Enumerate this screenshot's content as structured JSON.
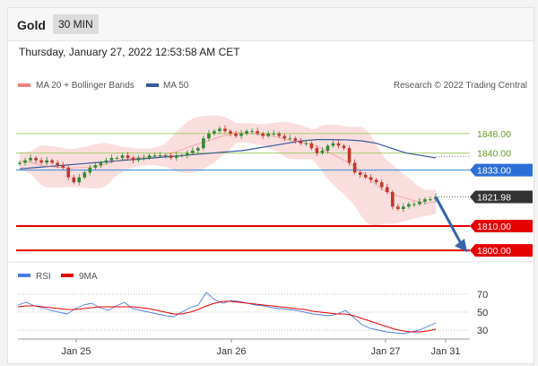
{
  "header": {
    "title": "Gold",
    "timeframe": "30 MIN"
  },
  "timestamp": "Thursday, January 27, 2022 12:53:58 AM CET",
  "legend": {
    "ma20": "MA 20 + Bollinger Bands",
    "ma50": "MA 50",
    "credit": "Research © 2022 Trading Central"
  },
  "rsi_legend": {
    "rsi": "RSI",
    "ma9": "9MA"
  },
  "colors": {
    "up": "#2e8b2e",
    "down": "#c0392b",
    "boll": "#f6c3c3",
    "ma50": "#34589a",
    "support": "#e60000",
    "resistance": "#4a90d9",
    "green_line": "#a3cc6a",
    "last": "#333333"
  },
  "chart_data": {
    "type": "line",
    "title": "Gold",
    "xlabel": "",
    "ylabel": "",
    "x_ticks": [
      "Jan 25",
      "Jan 26",
      "Jan 27",
      "Jan 31"
    ],
    "ylim": [
      1796,
      1866
    ],
    "price_series": {
      "name": "Gold price",
      "values": [
        1836,
        1837,
        1838,
        1837,
        1836,
        1837,
        1836,
        1835,
        1834,
        1830,
        1828,
        1830,
        1832,
        1834,
        1835,
        1836,
        1837,
        1838,
        1838,
        1839,
        1838,
        1837,
        1838,
        1838,
        1839,
        1839,
        1839,
        1839,
        1838,
        1839,
        1839,
        1840,
        1841,
        1842,
        1846,
        1848,
        1849,
        1850,
        1849,
        1848,
        1847,
        1848,
        1849,
        1849,
        1848,
        1847,
        1848,
        1848,
        1847,
        1846,
        1846,
        1845,
        1844,
        1844,
        1842,
        1840,
        1841,
        1843,
        1844,
        1843,
        1842,
        1836,
        1832,
        1831,
        1830,
        1829,
        1828,
        1826,
        1824,
        1818,
        1817,
        1818,
        1819,
        1819,
        1820,
        1821,
        1821,
        1822
      ]
    },
    "ma50_series": {
      "name": "MA 50",
      "values": [
        1833.5,
        1834,
        1834.5,
        1835,
        1835.5,
        1836,
        1836.5,
        1837,
        1837.5,
        1838,
        1838.5,
        1839,
        1839.5,
        1840,
        1840.5,
        1841,
        1842,
        1843,
        1844,
        1845,
        1845.5,
        1845.5,
        1845.4,
        1845,
        1844,
        1842,
        1840,
        1839,
        1838
      ]
    },
    "levels": [
      {
        "label": "1848.00",
        "value": 1848,
        "kind": "resistance-minor"
      },
      {
        "label": "1840.00",
        "value": 1840,
        "kind": "resistance-minor"
      },
      {
        "label": "1833.00",
        "value": 1833,
        "kind": "resistance"
      },
      {
        "label": "1821.98",
        "value": 1821.98,
        "kind": "last"
      },
      {
        "label": "1810.00",
        "value": 1810,
        "kind": "support"
      },
      {
        "label": "1800.00",
        "value": 1800,
        "kind": "support"
      }
    ],
    "rsi": {
      "ylim": [
        20,
        80
      ],
      "levels": [
        "70",
        "50",
        "30"
      ],
      "rsi_values": [
        58,
        61,
        57,
        55,
        52,
        50,
        48,
        54,
        58,
        60,
        55,
        52,
        57,
        61,
        54,
        52,
        50,
        48,
        46,
        45,
        50,
        55,
        58,
        72,
        64,
        60,
        63,
        62,
        60,
        58,
        57,
        55,
        54,
        53,
        52,
        50,
        48,
        47,
        46,
        48,
        52,
        44,
        36,
        32,
        30,
        28,
        27,
        26,
        28,
        30,
        34,
        38
      ],
      "ma9_values": [
        56,
        57,
        57,
        56,
        55,
        54,
        53,
        53,
        54,
        55,
        56,
        56,
        56,
        56,
        56,
        55,
        54,
        52,
        50,
        48,
        48,
        50,
        53,
        57,
        60,
        62,
        62,
        61,
        60,
        59,
        58,
        57,
        56,
        55,
        54,
        53,
        51,
        50,
        49,
        48,
        48,
        46,
        43,
        40,
        37,
        34,
        31,
        29,
        28,
        28,
        29,
        31
      ]
    }
  }
}
